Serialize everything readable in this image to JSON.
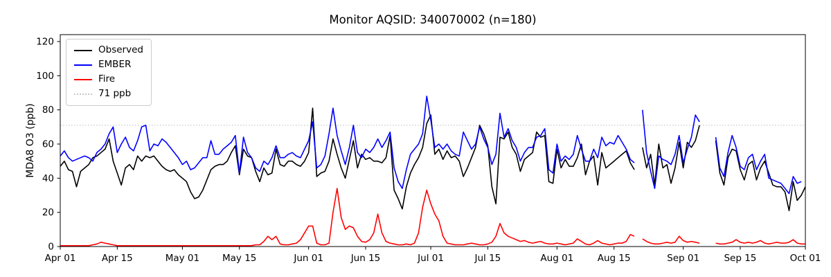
{
  "chart_data": {
    "type": "line",
    "title": "Monitor AQSID: 340070002 (n=180)",
    "xlabel": "",
    "ylabel": "MDA8 O3 (ppb)",
    "x_start": "Apr 01",
    "x_end": "Oct 01",
    "ylim": [
      0,
      124
    ],
    "grid": false,
    "legend_position": "upper left",
    "y_ticks": [
      0,
      20,
      40,
      60,
      80,
      100,
      120
    ],
    "x_tick_labels": [
      "Apr 01",
      "Apr 15",
      "May 01",
      "May 15",
      "Jun 01",
      "Jun 15",
      "Jul 01",
      "Jul 15",
      "Aug 01",
      "Aug 15",
      "Sep 01",
      "Sep 15",
      "Oct 01"
    ],
    "x_tick_day_index": [
      0,
      14,
      30,
      44,
      61,
      75,
      91,
      105,
      122,
      136,
      153,
      167,
      183
    ],
    "threshold": {
      "value": 71,
      "label": "71 ppb",
      "color": "#c8c8c8"
    },
    "legend_entries": [
      {
        "label": "Observed",
        "color": "#000000",
        "style": "solid"
      },
      {
        "label": "EMBER",
        "color": "#0000ff",
        "style": "solid"
      },
      {
        "label": "Fire",
        "color": "#ff0000",
        "style": "solid"
      },
      {
        "label": "71 ppb",
        "color": "#c8c8c8",
        "style": "dotted"
      }
    ],
    "series": [
      {
        "name": "Observed",
        "color": "#000000",
        "values": [
          47,
          50,
          45,
          44,
          35,
          44,
          46,
          48,
          52,
          53,
          55,
          57,
          63,
          50,
          43,
          36,
          46,
          48,
          45,
          53,
          50,
          53,
          52,
          53,
          50,
          47,
          45,
          44,
          45,
          42,
          40,
          38,
          32,
          28,
          29,
          33,
          39,
          45,
          47,
          48,
          48,
          50,
          55,
          59,
          42,
          57,
          53,
          52,
          44,
          38,
          46,
          42,
          43,
          57,
          48,
          47,
          50,
          50,
          48,
          47,
          50,
          55,
          81,
          41,
          43,
          44,
          50,
          63,
          54,
          46,
          40,
          51,
          62,
          46,
          54,
          51,
          52,
          50,
          50,
          49,
          52,
          65,
          33,
          28,
          22,
          35,
          43,
          48,
          52,
          58,
          72,
          77,
          54,
          57,
          51,
          56,
          52,
          53,
          50,
          41,
          46,
          52,
          58,
          71,
          66,
          59,
          35,
          25,
          64,
          63,
          67,
          58,
          54,
          44,
          51,
          53,
          55,
          67,
          64,
          65,
          38,
          37,
          57,
          46,
          51,
          47,
          47,
          52,
          60,
          42,
          50,
          53,
          36,
          55,
          46,
          48,
          50,
          52,
          54,
          56,
          49,
          45,
          null,
          58,
          46,
          54,
          36,
          60,
          46,
          48,
          37,
          46,
          61,
          46,
          61,
          58,
          62,
          71,
          null,
          null,
          null,
          62,
          43,
          36,
          52,
          57,
          56,
          45,
          39,
          48,
          50,
          39,
          46,
          50,
          43,
          36,
          35,
          35,
          32,
          21,
          38,
          27,
          30,
          35
        ]
      },
      {
        "name": "EMBER",
        "color": "#0000ff",
        "values": [
          53,
          56,
          52,
          50,
          51,
          52,
          53,
          52,
          50,
          55,
          57,
          60,
          66,
          70,
          55,
          60,
          64,
          58,
          56,
          62,
          70,
          71,
          56,
          60,
          59,
          63,
          61,
          58,
          55,
          52,
          48,
          50,
          45,
          46,
          49,
          52,
          52,
          62,
          54,
          54,
          57,
          59,
          61,
          65,
          43,
          64,
          55,
          52,
          46,
          44,
          50,
          48,
          52,
          59,
          52,
          52,
          54,
          55,
          53,
          52,
          57,
          62,
          73,
          46,
          48,
          53,
          66,
          81,
          65,
          56,
          48,
          58,
          71,
          55,
          52,
          57,
          55,
          58,
          63,
          58,
          62,
          67,
          46,
          38,
          34,
          45,
          54,
          57,
          60,
          66,
          88,
          74,
          58,
          60,
          57,
          60,
          56,
          54,
          53,
          67,
          62,
          57,
          60,
          70,
          63,
          58,
          48,
          54,
          78,
          64,
          69,
          62,
          58,
          50,
          55,
          58,
          58,
          64,
          65,
          69,
          45,
          43,
          60,
          50,
          53,
          51,
          54,
          65,
          57,
          50,
          50,
          57,
          52,
          64,
          59,
          61,
          60,
          65,
          61,
          57,
          51,
          49,
          null,
          80,
          55,
          44,
          34,
          53,
          51,
          50,
          48,
          54,
          65,
          49,
          57,
          64,
          77,
          73,
          null,
          null,
          null,
          64,
          46,
          41,
          55,
          65,
          58,
          47,
          45,
          52,
          54,
          45,
          50,
          54,
          40,
          39,
          38,
          37,
          34,
          31,
          41,
          37,
          38,
          null
        ]
      },
      {
        "name": "Fire",
        "color": "#ff0000",
        "values": [
          0.5,
          0.5,
          0.5,
          0.5,
          0.5,
          0.5,
          0.5,
          0.5,
          1,
          1.5,
          2.5,
          2,
          1.5,
          1,
          0.5,
          0.5,
          0.5,
          0.5,
          0.5,
          0.5,
          0.5,
          0.5,
          0.5,
          0.5,
          0.5,
          0.5,
          0.5,
          0.5,
          0.5,
          0.5,
          0.5,
          0.5,
          0.5,
          0.5,
          0.5,
          0.5,
          0.5,
          0.5,
          0.5,
          0.5,
          0.5,
          0.5,
          0.5,
          0.5,
          0.5,
          0.5,
          0.5,
          0.5,
          1,
          1,
          3,
          6,
          4,
          6,
          1.5,
          1,
          1,
          1.5,
          2,
          4,
          8,
          12,
          12,
          2,
          1,
          1,
          2,
          20,
          34,
          17,
          10,
          12,
          11,
          6,
          3,
          2.5,
          4,
          8,
          19,
          8,
          3,
          2,
          1.5,
          1,
          1,
          1.5,
          1,
          2,
          8,
          23,
          33,
          25,
          19,
          15,
          6,
          2,
          1.5,
          1,
          1,
          1,
          1.5,
          2,
          1.5,
          1,
          1,
          1.5,
          2.5,
          6,
          13.5,
          8,
          6,
          5,
          4,
          3,
          3.5,
          2.5,
          2,
          2.5,
          3,
          2,
          1.5,
          1.5,
          2,
          1.5,
          1,
          1.5,
          2,
          4.5,
          3,
          1.5,
          1,
          2,
          3.5,
          2,
          1.5,
          1,
          1.5,
          2,
          2,
          3,
          7,
          6,
          null,
          4.5,
          3,
          2,
          1.5,
          1.5,
          2,
          2.5,
          2,
          2.5,
          6,
          3.5,
          2.5,
          3,
          2.5,
          2,
          null,
          null,
          null,
          2,
          1.5,
          1.5,
          2,
          2.5,
          4,
          2.5,
          2,
          2.5,
          2,
          2.5,
          3.5,
          2,
          1.5,
          2,
          2.5,
          2,
          2,
          2.5,
          4,
          2,
          1.5,
          1.5
        ]
      }
    ]
  }
}
